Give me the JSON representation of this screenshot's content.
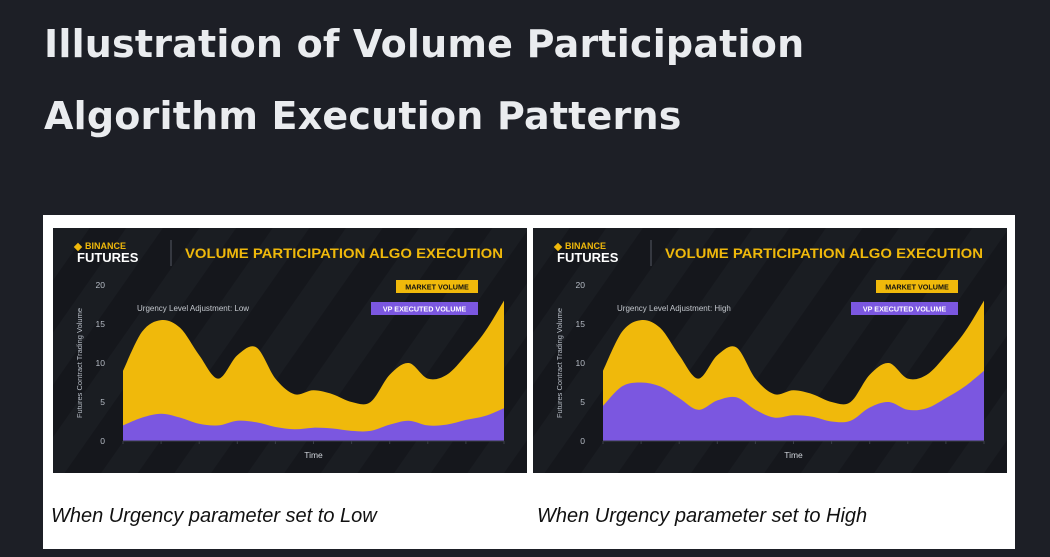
{
  "page": {
    "title": "Illustration of Volume Participation Algorithm Execution Patterns"
  },
  "colors": {
    "market": "#f0b90b",
    "vp": "#7b57e0",
    "panel_bg": "#15171c",
    "brand": "#f0b90b"
  },
  "chart_data": [
    {
      "type": "area",
      "brand_top": "BINANCE",
      "brand_bottom": "FUTURES",
      "title": "VOLUME PARTICIPATION ALGO EXECUTION",
      "xlabel": "Time",
      "ylabel": "Futures Contract Trading Volume",
      "ylim": [
        0,
        20
      ],
      "yticks": [
        0,
        5,
        10,
        15,
        20
      ],
      "annotation": "Urgency Level Adjustment: Low",
      "legend_position": "top-right",
      "x": [
        0,
        1,
        2,
        3,
        4,
        5,
        6,
        7,
        8,
        9,
        10,
        11,
        12,
        13,
        14,
        15,
        16,
        17,
        18,
        19,
        20
      ],
      "series": [
        {
          "name": "MARKET VOLUME",
          "values": [
            9,
            14,
            15.5,
            14.5,
            11,
            8,
            11,
            12,
            8,
            6,
            6.5,
            6,
            5,
            5,
            8.5,
            10,
            8,
            8.5,
            11,
            14,
            18
          ]
        },
        {
          "name": "VP EXECUTED VOLUME",
          "values": [
            2,
            3,
            3.5,
            3,
            2.2,
            2,
            2.6,
            2.4,
            1.8,
            1.5,
            1.7,
            1.6,
            1.3,
            1.3,
            2.1,
            2.6,
            2,
            2.1,
            2.7,
            3.2,
            4.2
          ]
        }
      ]
    },
    {
      "type": "area",
      "brand_top": "BINANCE",
      "brand_bottom": "FUTURES",
      "title": "VOLUME PARTICIPATION ALGO EXECUTION",
      "xlabel": "Time",
      "ylabel": "Futures Contract Trading Volume",
      "ylim": [
        0,
        20
      ],
      "yticks": [
        0,
        5,
        10,
        15,
        20
      ],
      "annotation": "Urgency Level Adjustment: High",
      "legend_position": "top-right",
      "x": [
        0,
        1,
        2,
        3,
        4,
        5,
        6,
        7,
        8,
        9,
        10,
        11,
        12,
        13,
        14,
        15,
        16,
        17,
        18,
        19,
        20
      ],
      "series": [
        {
          "name": "MARKET VOLUME",
          "values": [
            9,
            14,
            15.5,
            14.5,
            11,
            8,
            11,
            12,
            8,
            6,
            6.5,
            6,
            5,
            5,
            8.5,
            10,
            8,
            8.5,
            11,
            14,
            18
          ]
        },
        {
          "name": "VP EXECUTED VOLUME",
          "values": [
            4.5,
            7,
            7.5,
            7,
            5.5,
            4,
            5.2,
            5.6,
            4,
            3,
            3.3,
            3.1,
            2.5,
            2.6,
            4.3,
            5,
            4,
            4.2,
            5.5,
            7,
            9
          ]
        }
      ]
    }
  ],
  "captions": [
    "When Urgency parameter set to Low",
    "When Urgency parameter set to High"
  ]
}
